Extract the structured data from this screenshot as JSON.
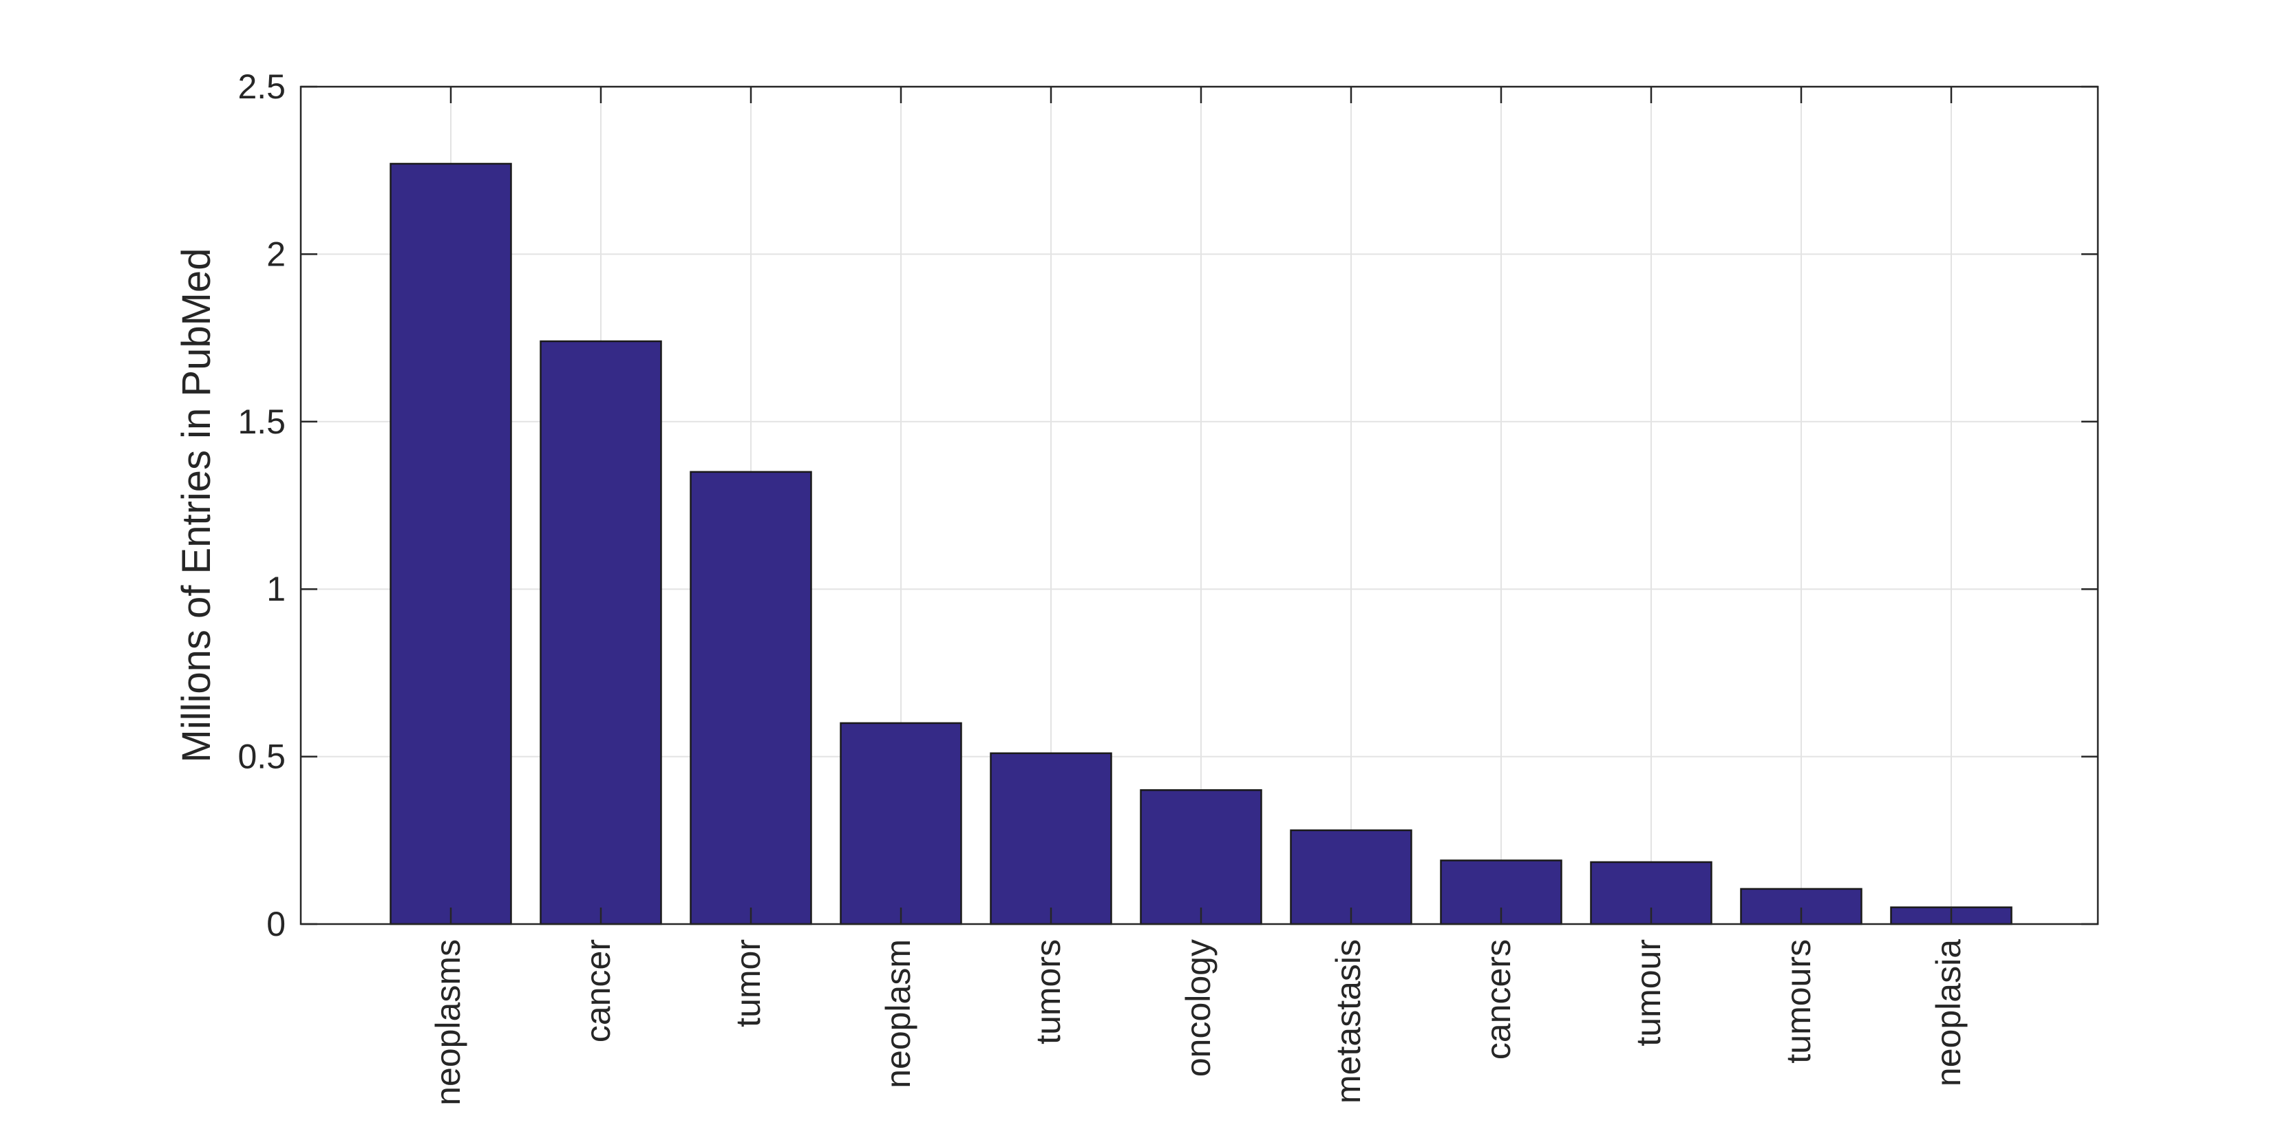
{
  "chart_data": {
    "type": "bar",
    "title": "",
    "xlabel": "",
    "ylabel": "Millions of Entries in PubMed",
    "categories": [
      "neoplasms",
      "cancer",
      "tumor",
      "neoplasm",
      "tumors",
      "oncology",
      "metastasis",
      "cancers",
      "tumour",
      "tumours",
      "neoplasia"
    ],
    "values": [
      2.27,
      1.74,
      1.35,
      0.6,
      0.51,
      0.4,
      0.28,
      0.19,
      0.185,
      0.105,
      0.05
    ],
    "ylim": [
      0,
      2.5
    ],
    "yticks": [
      0,
      0.5,
      1,
      1.5,
      2,
      2.5
    ],
    "ytick_labels": [
      "0",
      "0.5",
      "1",
      "1.5",
      "2",
      "2.5"
    ],
    "grid": true,
    "legend": "none",
    "bar_color": "#352a87"
  }
}
